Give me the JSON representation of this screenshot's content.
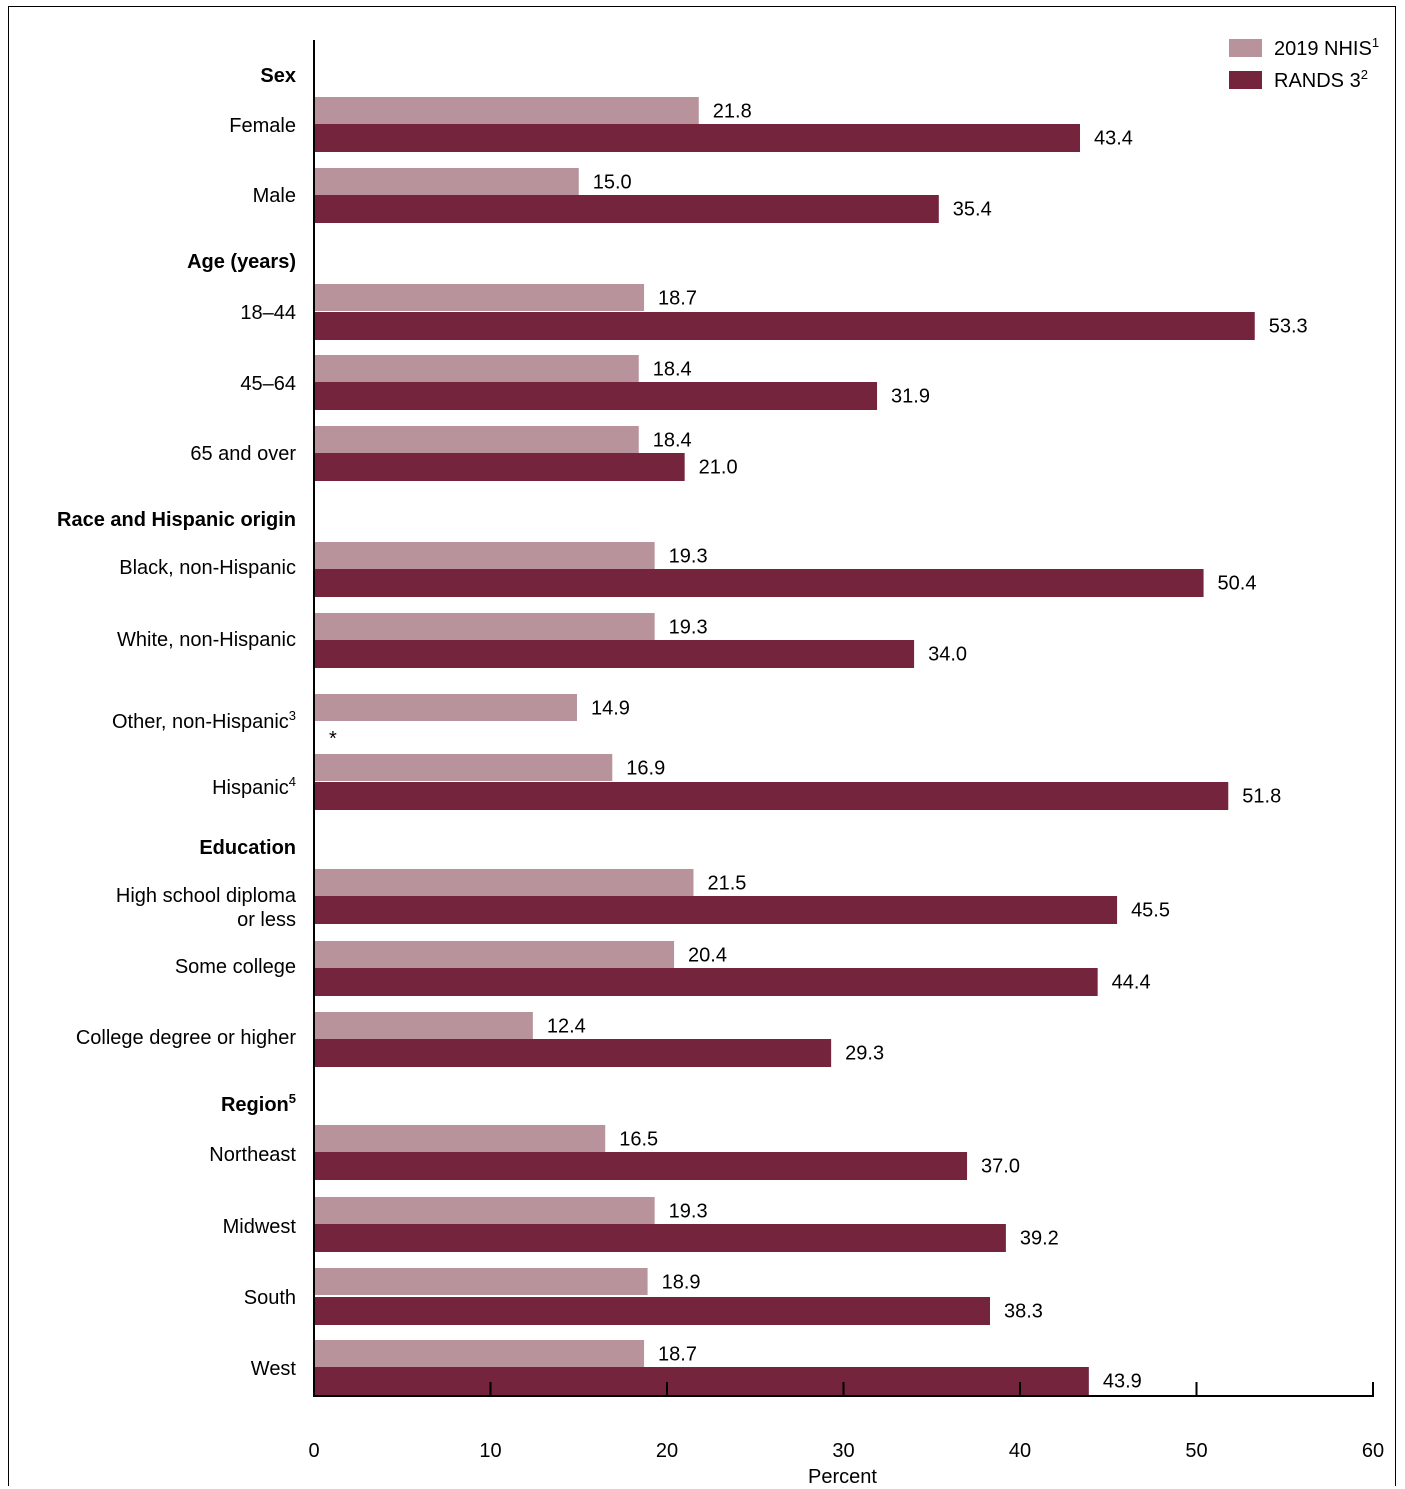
{
  "chart_data": {
    "type": "bar",
    "orientation": "horizontal",
    "xlabel": "Percent",
    "xlim": [
      0,
      60
    ],
    "xticks": [
      "0",
      "10",
      "20",
      "30",
      "40",
      "50",
      "60"
    ],
    "legend": {
      "placement": "top-right",
      "entries": [
        {
          "name": "2019 NHIS",
          "sup": "1",
          "color": "#b8939b"
        },
        {
          "name": "RANDS 3",
          "sup": "2",
          "color": "#74243d"
        }
      ]
    },
    "colors": {
      "nhis": "#b8939b",
      "rands": "#74243d"
    },
    "groups": [
      {
        "label": "Sex",
        "sup": "",
        "rows": [
          {
            "label": "Female",
            "sup": "",
            "nhis": 21.8,
            "nhis_label": "21.8",
            "rands": 43.4,
            "rands_label": "43.4"
          },
          {
            "label": "Male",
            "sup": "",
            "nhis": 15.0,
            "nhis_label": "15.0",
            "rands": 35.4,
            "rands_label": "35.4"
          }
        ]
      },
      {
        "label": "Age (years)",
        "sup": "",
        "rows": [
          {
            "label": "18–44",
            "sup": "",
            "nhis": 18.7,
            "nhis_label": "18.7",
            "rands": 53.3,
            "rands_label": "53.3"
          },
          {
            "label": "45–64",
            "sup": "",
            "nhis": 18.4,
            "nhis_label": "18.4",
            "rands": 31.9,
            "rands_label": "31.9"
          },
          {
            "label": "65 and over",
            "sup": "",
            "nhis": 18.4,
            "nhis_label": "18.4",
            "rands": 21.0,
            "rands_label": "21.0"
          }
        ]
      },
      {
        "label": "Race and Hispanic origin",
        "sup": "",
        "rows": [
          {
            "label": "Black, non-Hispanic",
            "sup": "",
            "nhis": 19.3,
            "nhis_label": "19.3",
            "rands": 50.4,
            "rands_label": "50.4"
          },
          {
            "label": "White, non-Hispanic",
            "sup": "",
            "nhis": 19.3,
            "nhis_label": "19.3",
            "rands": 34.0,
            "rands_label": "34.0"
          },
          {
            "label": "Other, non-Hispanic",
            "sup": "3",
            "nhis": 14.9,
            "nhis_label": "14.9",
            "rands": null,
            "rands_label": "*"
          },
          {
            "label": "Hispanic",
            "sup": "4",
            "nhis": 16.9,
            "nhis_label": "16.9",
            "rands": 51.8,
            "rands_label": "51.8"
          }
        ]
      },
      {
        "label": "Education",
        "sup": "",
        "rows": [
          {
            "label": "High school diploma",
            "label2": "or less",
            "sup": "",
            "nhis": 21.5,
            "nhis_label": "21.5",
            "rands": 45.5,
            "rands_label": "45.5"
          },
          {
            "label": "Some college",
            "sup": "",
            "nhis": 20.4,
            "nhis_label": "20.4",
            "rands": 44.4,
            "rands_label": "44.4"
          },
          {
            "label": "College degree or higher",
            "sup": "",
            "nhis": 12.4,
            "nhis_label": "12.4",
            "rands": 29.3,
            "rands_label": "29.3"
          }
        ]
      },
      {
        "label": "Region",
        "sup": "5",
        "rows": [
          {
            "label": "Northeast",
            "sup": "",
            "nhis": 16.5,
            "nhis_label": "16.5",
            "rands": 37.0,
            "rands_label": "37.0"
          },
          {
            "label": "Midwest",
            "sup": "",
            "nhis": 19.3,
            "nhis_label": "19.3",
            "rands": 39.2,
            "rands_label": "39.2"
          },
          {
            "label": "South",
            "sup": "",
            "nhis": 18.9,
            "nhis_label": "18.9",
            "rands": 38.3,
            "rands_label": "38.3"
          },
          {
            "label": "West",
            "sup": "",
            "nhis": 18.7,
            "nhis_label": "18.7",
            "rands": 43.9,
            "rands_label": "43.9"
          }
        ]
      }
    ]
  }
}
